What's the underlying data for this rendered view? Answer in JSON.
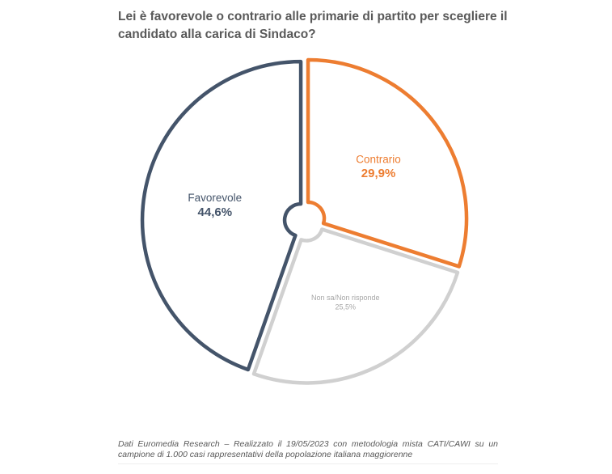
{
  "chart_data": {
    "type": "pie",
    "title": "Lei è favorevole o contrario alle primarie di partito per scegliere il candidato alla carica di Sindaco?",
    "slices": [
      {
        "label": "Contrario",
        "value": 29.9,
        "value_label": "29,9%",
        "color": "#ed7d31"
      },
      {
        "label": "Non sa/Non risponde",
        "value": 25.5,
        "value_label": "25,5%",
        "color": "#d0d0d0"
      },
      {
        "label": "Favorevole",
        "value": 44.6,
        "value_label": "44,6%",
        "color": "#44546a"
      }
    ],
    "start": "top",
    "direction": "clockwise",
    "exploded": true,
    "legend": "none"
  },
  "footer": "Dati Euromedia Research – Realizzato il 19/05/2023 con metodologia mista CATI/CAWI su un campione di 1.000 casi rappresentativi della popolazione italiana maggiorenne"
}
